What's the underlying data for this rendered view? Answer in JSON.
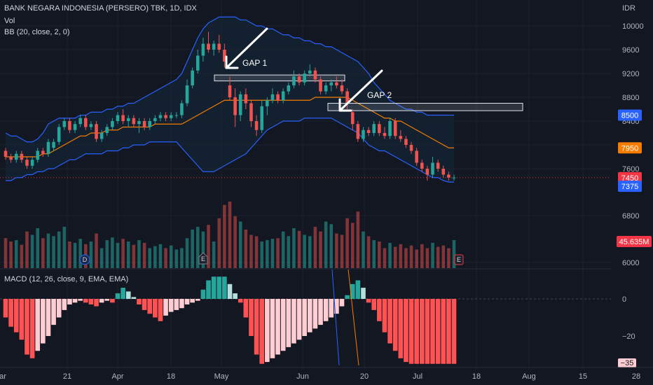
{
  "header": {
    "symbol": "BANK NEGARA INDONESIA (PERSERO) TBK, 1D, IDX",
    "vol_label": "Vol",
    "bb_label": "BB (20, close, 2, 0)",
    "macd_label": "MACD (12, 26, close, 9, EMA, EMA)"
  },
  "price_axis": {
    "currency": "IDR",
    "ticks": [
      "10000",
      "9600",
      "9200",
      "8800",
      "8400",
      "8000",
      "7600",
      "6800",
      "6000"
    ],
    "badges": [
      {
        "label": "8500",
        "color": "#2962ff"
      },
      {
        "label": "7950",
        "color": "#f57c00"
      },
      {
        "label": "7450",
        "color": "#f23645"
      },
      {
        "label": "7375",
        "color": "#2962ff"
      },
      {
        "label": "45.635M",
        "color": "#f23645"
      }
    ]
  },
  "macd_axis": {
    "ticks": [
      "0",
      "−20"
    ],
    "badge": {
      "label": "−35",
      "color": "#ffcdd2"
    }
  },
  "time_axis": [
    "ar",
    "21",
    "Apr",
    "18",
    "May",
    "Jun",
    "20",
    "Jul",
    "18",
    "Aug",
    "15",
    "28"
  ],
  "annotations": {
    "gap1": "GAP 1",
    "gap2": "GAP 2"
  },
  "events": {
    "dividend": "D",
    "earnings": "E"
  },
  "chart_data": {
    "type": "candlestick",
    "title": "BANK NEGARA INDONESIA (PERSERO) TBK, 1D, IDX",
    "y_unit": "IDR",
    "ylim": [
      5900,
      10300
    ],
    "gaps": [
      {
        "label": "GAP 1",
        "low": 9075,
        "high": 9175
      },
      {
        "label": "GAP 2",
        "low": 8575,
        "high": 8700
      }
    ],
    "ohlc": [
      [
        7900,
        7950,
        7750,
        7800
      ],
      [
        7800,
        7850,
        7700,
        7750
      ],
      [
        7750,
        7900,
        7700,
        7850
      ],
      [
        7850,
        7900,
        7700,
        7750
      ],
      [
        7750,
        7800,
        7600,
        7650
      ],
      [
        7650,
        7800,
        7600,
        7750
      ],
      [
        7750,
        7950,
        7700,
        7900
      ],
      [
        7900,
        7950,
        7800,
        7850
      ],
      [
        7850,
        8100,
        7800,
        8050
      ],
      [
        7950,
        8100,
        7900,
        8050
      ],
      [
        8050,
        8350,
        8000,
        8300
      ],
      [
        8300,
        8450,
        8250,
        8400
      ],
      [
        8400,
        8450,
        8200,
        8250
      ],
      [
        8250,
        8400,
        8200,
        8350
      ],
      [
        8350,
        8500,
        8300,
        8450
      ],
      [
        8450,
        8500,
        8250,
        8300
      ],
      [
        8300,
        8400,
        8250,
        8350
      ],
      [
        8350,
        8400,
        8050,
        8100
      ],
      [
        8100,
        8250,
        8050,
        8200
      ],
      [
        8200,
        8350,
        8150,
        8300
      ],
      [
        8300,
        8450,
        8250,
        8400
      ],
      [
        8400,
        8550,
        8350,
        8500
      ],
      [
        8500,
        8600,
        8350,
        8400
      ],
      [
        8400,
        8500,
        8300,
        8450
      ],
      [
        8450,
        8500,
        8300,
        8350
      ],
      [
        8350,
        8450,
        8200,
        8400
      ],
      [
        8400,
        8450,
        8250,
        8300
      ],
      [
        8300,
        8450,
        8250,
        8400
      ],
      [
        8400,
        8500,
        8350,
        8450
      ],
      [
        8450,
        8550,
        8400,
        8500
      ],
      [
        8500,
        8550,
        8400,
        8450
      ],
      [
        8450,
        8550,
        8400,
        8500
      ],
      [
        8500,
        8550,
        8450,
        8500
      ],
      [
        8500,
        8750,
        8450,
        8700
      ],
      [
        8700,
        9100,
        8650,
        9000
      ],
      [
        9000,
        9300,
        8950,
        9250
      ],
      [
        9250,
        9600,
        9200,
        9500
      ],
      [
        9500,
        9800,
        9400,
        9700
      ],
      [
        9700,
        9900,
        9550,
        9600
      ],
      [
        9600,
        9750,
        9500,
        9700
      ],
      [
        9700,
        9850,
        9550,
        9600
      ],
      [
        9600,
        9700,
        9300,
        9400
      ],
      [
        9000,
        9150,
        8750,
        8800
      ],
      [
        8800,
        8950,
        8300,
        8500
      ],
      [
        8500,
        8900,
        8400,
        8850
      ],
      [
        8850,
        8950,
        8600,
        8700
      ],
      [
        8700,
        8750,
        8300,
        8400
      ],
      [
        8400,
        8500,
        8150,
        8250
      ],
      [
        8250,
        8750,
        8200,
        8650
      ],
      [
        8650,
        8800,
        8500,
        8750
      ],
      [
        8750,
        8950,
        8700,
        8850
      ],
      [
        8850,
        8900,
        8700,
        8750
      ],
      [
        8750,
        8950,
        8700,
        8900
      ],
      [
        8900,
        9050,
        8850,
        9000
      ],
      [
        9000,
        9250,
        8950,
        9150
      ],
      [
        9150,
        9200,
        9000,
        9050
      ],
      [
        9050,
        9250,
        9000,
        9200
      ],
      [
        9200,
        9350,
        9150,
        9250
      ],
      [
        9250,
        9300,
        9050,
        9100
      ],
      [
        9100,
        9150,
        8850,
        8900
      ],
      [
        8900,
        9050,
        8850,
        9000
      ],
      [
        9000,
        9100,
        8900,
        9050
      ],
      [
        9050,
        9150,
        8950,
        9000
      ],
      [
        9000,
        9100,
        8850,
        8900
      ],
      [
        8900,
        8950,
        8600,
        8700
      ],
      [
        8550,
        8600,
        8250,
        8350
      ],
      [
        8350,
        8400,
        8050,
        8100
      ],
      [
        8100,
        8300,
        8050,
        8250
      ],
      [
        8250,
        8300,
        8150,
        8200
      ],
      [
        8200,
        8400,
        8150,
        8350
      ],
      [
        8350,
        8400,
        8150,
        8200
      ],
      [
        8200,
        8300,
        8100,
        8150
      ],
      [
        8150,
        8450,
        8100,
        8400
      ],
      [
        8400,
        8450,
        8100,
        8150
      ],
      [
        8150,
        8250,
        8050,
        8100
      ],
      [
        8100,
        8150,
        7950,
        8000
      ],
      [
        8000,
        8050,
        7850,
        7900
      ],
      [
        7900,
        7950,
        7650,
        7700
      ],
      [
        7700,
        7750,
        7550,
        7600
      ],
      [
        7600,
        7650,
        7400,
        7500
      ],
      [
        7500,
        7800,
        7450,
        7700
      ],
      [
        7700,
        7750,
        7550,
        7600
      ],
      [
        7600,
        7650,
        7450,
        7500
      ],
      [
        7500,
        7550,
        7400,
        7450
      ],
      [
        7450,
        7500,
        7400,
        7450
      ]
    ],
    "bb_upper": [
      8200,
      8150,
      8150,
      8100,
      8050,
      8050,
      8100,
      8200,
      8350,
      8400,
      8450,
      8450,
      8450,
      8450,
      8500,
      8500,
      8550,
      8550,
      8550,
      8600,
      8600,
      8650,
      8650,
      8700,
      8700,
      8750,
      8800,
      8850,
      8900,
      8950,
      9000,
      9050,
      9100,
      9200,
      9400,
      9600,
      9800,
      9950,
      10050,
      10100,
      10150,
      10150,
      10150,
      10150,
      10100,
      10100,
      10050,
      10000,
      10000,
      9950,
      9950,
      9900,
      9850,
      9850,
      9800,
      9800,
      9750,
      9750,
      9700,
      9700,
      9650,
      9650,
      9600,
      9550,
      9500,
      9450,
      9400,
      9300,
      9200,
      9050,
      8950,
      8850,
      8750,
      8700,
      8650,
      8600,
      8600,
      8550,
      8550,
      8500,
      8500,
      8500,
      8500,
      8500,
      8500
    ],
    "bb_basis": [
      7800,
      7800,
      7800,
      7800,
      7800,
      7800,
      7800,
      7850,
      7850,
      7900,
      7950,
      8000,
      8050,
      8100,
      8150,
      8150,
      8200,
      8200,
      8200,
      8250,
      8250,
      8250,
      8300,
      8300,
      8300,
      8300,
      8300,
      8300,
      8350,
      8350,
      8350,
      8350,
      8350,
      8350,
      8400,
      8450,
      8500,
      8550,
      8600,
      8650,
      8700,
      8750,
      8750,
      8750,
      8750,
      8750,
      8750,
      8750,
      8750,
      8750,
      8750,
      8750,
      8750,
      8750,
      8750,
      8750,
      8750,
      8750,
      8800,
      8800,
      8800,
      8800,
      8800,
      8800,
      8800,
      8750,
      8700,
      8650,
      8600,
      8550,
      8500,
      8450,
      8450,
      8400,
      8400,
      8350,
      8300,
      8250,
      8200,
      8150,
      8100,
      8050,
      8000,
      7950,
      7950
    ],
    "bb_lower": [
      7400,
      7400,
      7450,
      7450,
      7500,
      7500,
      7550,
      7550,
      7600,
      7600,
      7650,
      7700,
      7750,
      7750,
      7800,
      7850,
      7850,
      7850,
      7850,
      7900,
      7900,
      7900,
      7950,
      7950,
      8000,
      8000,
      8000,
      8050,
      8050,
      8050,
      8050,
      8050,
      8050,
      7950,
      7850,
      7750,
      7650,
      7550,
      7550,
      7550,
      7600,
      7650,
      7700,
      7750,
      7800,
      7850,
      7950,
      8050,
      8150,
      8250,
      8300,
      8350,
      8400,
      8400,
      8400,
      8400,
      8450,
      8450,
      8450,
      8450,
      8450,
      8450,
      8400,
      8350,
      8300,
      8250,
      8200,
      8100,
      8000,
      7950,
      7900,
      7900,
      7850,
      7800,
      7750,
      7700,
      7650,
      7600,
      7550,
      7500,
      7450,
      7450,
      7400,
      7375,
      7375
    ],
    "volume": [
      0.45,
      0.4,
      0.42,
      0.35,
      0.55,
      0.5,
      0.6,
      0.45,
      0.52,
      0.48,
      0.55,
      0.62,
      0.4,
      0.38,
      0.44,
      0.36,
      0.4,
      0.52,
      0.3,
      0.42,
      0.46,
      0.38,
      0.44,
      0.4,
      0.35,
      0.42,
      0.38,
      0.3,
      0.33,
      0.36,
      0.3,
      0.34,
      0.28,
      0.3,
      0.45,
      0.58,
      0.62,
      0.55,
      0.65,
      0.4,
      0.75,
      0.95,
      1.0,
      0.78,
      0.7,
      0.58,
      0.5,
      0.48,
      0.4,
      0.42,
      0.44,
      0.45,
      0.55,
      0.48,
      0.6,
      0.56,
      0.5,
      0.48,
      0.62,
      0.55,
      0.7,
      0.66,
      0.52,
      0.5,
      0.75,
      0.68,
      0.85,
      0.55,
      0.48,
      0.42,
      0.4,
      0.3,
      0.38,
      0.32,
      0.36,
      0.3,
      0.34,
      0.28,
      0.36,
      0.3,
      0.38,
      0.32,
      0.34,
      0.3,
      0.42
    ],
    "macd_hist": [
      -10,
      -15,
      -18,
      -22,
      -30,
      -32,
      -28,
      -24,
      -20,
      -14,
      -10,
      -6,
      -3,
      -2,
      -1,
      -2,
      -3,
      -4,
      -2,
      -1,
      -2,
      3,
      6,
      4,
      1,
      -3,
      -6,
      -8,
      -10,
      -12,
      -9,
      -7,
      -6,
      -5,
      -3,
      -2,
      -1,
      5,
      10,
      12,
      12,
      12,
      8,
      3,
      -2,
      -10,
      -20,
      -30,
      -35,
      -34,
      -32,
      -30,
      -28,
      -26,
      -24,
      -22,
      -20,
      -18,
      -16,
      -14,
      -12,
      -10,
      -8,
      -4,
      2,
      8,
      10,
      6,
      -2,
      -6,
      -12,
      -18,
      -24,
      -28,
      -32,
      -34,
      -35,
      -35,
      -35,
      -35,
      -35,
      -35,
      -35,
      -35,
      -35
    ],
    "macd_ylim": [
      -38,
      14
    ]
  }
}
